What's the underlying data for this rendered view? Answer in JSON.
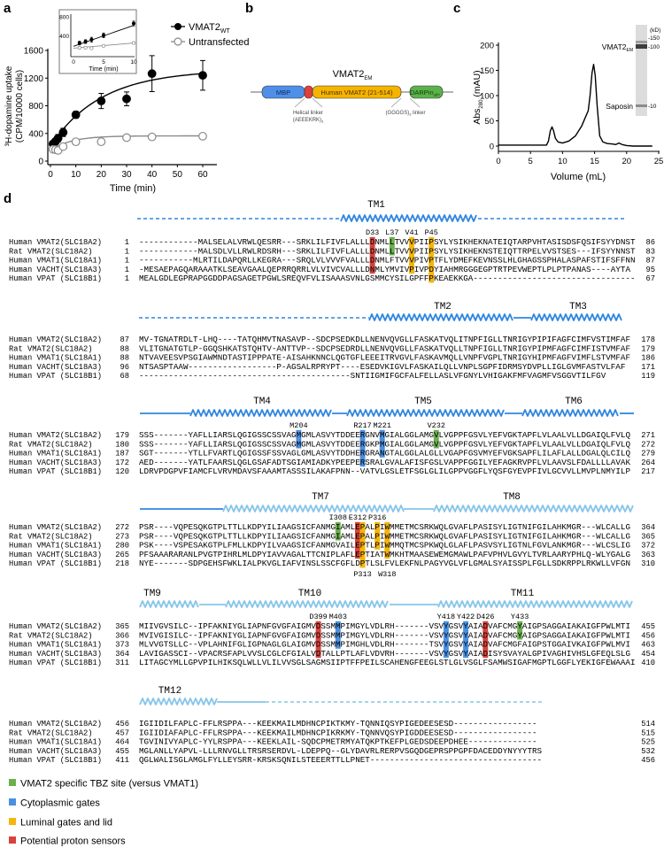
{
  "panel_labels": {
    "a": "a",
    "b": "b",
    "c": "c",
    "d": "d"
  },
  "chart_data": [
    {
      "panel": "a",
      "type": "scatter",
      "title": "",
      "xlabel": "Time (min)",
      "ylabel_line1": "³H-dopamine uptake",
      "ylabel_line2": "(CPM/10000 cells)",
      "xlim": [
        0,
        60
      ],
      "ylim": [
        0,
        1600
      ],
      "xticks": [
        "0",
        "10",
        "20",
        "30",
        "40",
        "50",
        "60"
      ],
      "yticks": [
        "0",
        "400",
        "800",
        "1200",
        "1600"
      ],
      "legend_position": "top-right",
      "series": [
        {
          "name": "VMAT2",
          "name_sub": "WT",
          "marker": "filled-circle",
          "color": "#000000",
          "x": [
            1,
            2,
            3,
            5,
            10,
            20,
            30,
            40,
            60
          ],
          "y": [
            250,
            285,
            330,
            415,
            670,
            870,
            900,
            1265,
            1240
          ],
          "err": [
            35,
            45,
            55,
            60,
            50,
            110,
            100,
            260,
            215
          ],
          "fit": {
            "plateau_start": 220,
            "span": 1100,
            "tau": 20
          }
        },
        {
          "name": "Untransfected",
          "name_sub": "",
          "marker": "open-circle",
          "color": "#8a8a8a",
          "x": [
            1,
            2,
            3,
            5,
            10,
            20,
            30,
            40,
            60
          ],
          "y": [
            170,
            165,
            155,
            210,
            280,
            280,
            340,
            350,
            360
          ],
          "err": [
            15,
            15,
            15,
            20,
            20,
            25,
            20,
            30,
            20
          ],
          "fit": {
            "plateau_start": 150,
            "span": 215,
            "tau": 8
          }
        }
      ]
    },
    {
      "panel": "a-inset",
      "type": "scatter",
      "xlabel": "Time (min)",
      "xlim": [
        0,
        10
      ],
      "ylim": [
        0,
        800
      ],
      "xticks": [
        "0",
        "5",
        "10"
      ],
      "yticks": [
        "400",
        "800"
      ],
      "series": [
        {
          "name": "VMAT2",
          "x": [
            1,
            2,
            3,
            5,
            10
          ],
          "y": [
            250,
            280,
            320,
            410,
            660
          ],
          "err": [
            40,
            40,
            50,
            50,
            50
          ],
          "fit_line": [
            180,
            620
          ]
        },
        {
          "name": "Untransfected",
          "x": [
            1,
            2,
            3,
            5,
            10
          ],
          "y": [
            150,
            150,
            140,
            190,
            250
          ],
          "err": [
            10,
            10,
            10,
            10,
            10
          ],
          "fit_line": [
            140,
            250
          ]
        }
      ]
    },
    {
      "panel": "c",
      "type": "line",
      "xlabel": "Volume (mL)",
      "ylabel": "Abs",
      "ylabel_sub": "280",
      "ylabel_unit": " (mAU)",
      "xlim": [
        0,
        25
      ],
      "ylim": [
        -10,
        200
      ],
      "xticks": [
        "0",
        "5",
        "10",
        "15",
        "20",
        "25"
      ],
      "yticks": [
        "0",
        "50",
        "100",
        "150",
        "200"
      ],
      "x": [
        0,
        5,
        7.5,
        7.8,
        8.1,
        8.35,
        8.6,
        8.9,
        9.3,
        10,
        11,
        12,
        13,
        13.5,
        14,
        14.3,
        14.6,
        14.85,
        15.1,
        15.4,
        15.8,
        16.3,
        17,
        17.8,
        18.3,
        18.8,
        19.3,
        20,
        21,
        24
      ],
      "y": [
        2,
        2,
        2,
        10,
        30,
        38,
        30,
        15,
        8,
        6,
        10,
        20,
        40,
        55,
        70,
        100,
        145,
        162,
        140,
        80,
        20,
        8,
        5,
        4,
        3,
        6,
        3,
        1,
        0,
        0
      ],
      "gel": {
        "unit": "(kD)",
        "markers": [
          "-150",
          "-100",
          "-10"
        ],
        "band_labels": [
          {
            "text": "VMAT2",
            "sub": "EM"
          },
          {
            "text": "Saposin",
            "sub": ""
          }
        ]
      }
    }
  ],
  "construct": {
    "title": "VMAT2",
    "title_sub": "EM",
    "domains": [
      {
        "label": "MBP",
        "color": "#4f8fe8"
      },
      {
        "label": "",
        "color": "#e0403c"
      },
      {
        "label": "Human VMAT2 (21-514)",
        "color": "#f5b400"
      },
      {
        "label": "DARPin",
        "sub": "off7",
        "color": "#5cb24a"
      }
    ],
    "helical_linker": "Helical linker",
    "helical_linker_seq": "(AEEEKRK)",
    "helical_linker_sub": "3",
    "gs_linker": "(GGGGS)",
    "gs_linker_sub": "3",
    "gs_linker_suffix": " linker"
  },
  "alignment": {
    "names": [
      "Human VMAT2(SLC18A2)",
      "Rat   VMAT2(SLC18A2)",
      "Human VMAT1(SLC18A1)",
      "Human VACHT(SLC18A3)",
      "Human VPAT (SLC18B1)"
    ],
    "colors": {
      "tbz": "#6ab04c",
      "cyto": "#4a90e2",
      "lumen": "#f5b50a",
      "proton": "#d9413a"
    },
    "blocks": [
      {
        "tm_labels": [
          "TM1"
        ],
        "rows": [
          {
            "start": "1",
            "seq": "------------MALSELALVRWLQESRR---SRKLILFIVFLALLLDNMLLTVVVPIIPSYLYSIKHEKNATEIQTARPVHTASISDSFQSIFSYYDNST",
            "end": "86"
          },
          {
            "start": "1",
            "seq": "------------MALSDLVLLRWLRDSRH---SRKLILFIVFLALLLDNMLLTVVVPIIPSYLYSIKHEKNSTEIQTTRPELVVSTSES---IFSYYNNST",
            "end": "83"
          },
          {
            "start": "1",
            "seq": "-----------MLRTILDAPQRLLKEGRA---SRQLVLVVVFVALLLDNMLFTVVVPIVPTFLYDMEFKEVNSSLHLGHAGSSPHALASPAFSTIFSFFNN",
            "end": "87"
          },
          {
            "start": "1",
            "seq": "-MESAEPAGQARAAATKLSEAVGAALQEPRRQRRLVLVIVCVALLLDNMLYMVIVPIVPDYIAHMRGGGEGPTRTPEVWEPTLPLPTPANAS----AYTA",
            "end": "95"
          },
          {
            "start": "1",
            "seq": "MEALGDLEGPRAPGGDDPAGSAGETPGWLSREQVFVLISAAASVNLGSMMCYSILGPFFPKEAEKKGA---------------------------------",
            "end": "67"
          }
        ],
        "highlights": [
          {
            "label": "D33",
            "residue": 33,
            "type": "proton",
            "rows": [
              0,
              1,
              2,
              3
            ],
            "label_pos": "above"
          },
          {
            "label": "L37",
            "residue": 37,
            "type": "tbz",
            "rows": [
              0,
              1
            ],
            "label_pos": "above"
          },
          {
            "label": "V41",
            "residue": 41,
            "type": "lumen",
            "rows": [
              0,
              1,
              2,
              3
            ],
            "label_pos": "above"
          },
          {
            "label": "P45",
            "residue": 45,
            "type": "lumen",
            "rows": [
              0,
              1,
              2,
              3,
              4
            ],
            "label_pos": "above"
          }
        ]
      },
      {
        "tm_labels": [
          "TM2",
          "TM3"
        ],
        "rows": [
          {
            "start": "87",
            "seq": "MV-TGNATRDLT-LHQ----TATQHMVTNASAVP--SDCPSEDKDLLNENVQVGLLFASKATVQLITNPFIGLLTNRIGYPIPIFAGFCIMFVSTIMFAF",
            "end": "178"
          },
          {
            "start": "88",
            "seq": "VLITGNATGTLP-GGQSHKATSTQHTV-ANTTVP--SDCPSEDRDLLNENVQVGLLFASKATVQLLTNPFIGLLTNRIGYPIPMFAGFCIMFISTVMFAF",
            "end": "179"
          },
          {
            "start": "88",
            "seq": "NTVAVEESVPSGIAWMNDTASTIPPPATE-AISAHKNNCLQGTGFLEEEITRVGVLFASKAVMQLLVNPFVGPLTNRIGYHIPMFAGFVIMFLSTVMFAF",
            "end": "186"
          },
          {
            "start": "96",
            "seq": "NTSASPTAAW------------------P-AGSALRPRYPT----ESEDVKIGVLFASKAILQLLVNPLSGPFIDRMSYDVPLLIGLGVMFASTVLFAF",
            "end": "171"
          },
          {
            "start": "68",
            "seq": "-------------------------------------------SNTIIGMIFGCFALFELLASLVFGNYLVHIGAKFMFVAGMFVSGGVTILFGV",
            "end": "119"
          }
        ],
        "highlights": []
      },
      {
        "tm_labels": [
          "TM4",
          "TM5",
          "TM6"
        ],
        "rows": [
          {
            "start": "179",
            "seq": "SSS-------YAFLLIARSLQGIGSSCSSVAGMGMLASVYTDDEERGNVMGIALGGLAMGVLVGPPFGSVLYEFVGKTAPFLVLAALVLLDGAIQLFVLQ",
            "end": "271"
          },
          {
            "start": "180",
            "seq": "SSS-------YAFLLIARSLQGIGSSCSSVAGMGMLASVYTDDEERGKPMGIALGGLAMGVLVGPPFGSVLYEFVGKTAPFLVLAALVLLDGAIQLFVLQ",
            "end": "272"
          },
          {
            "start": "187",
            "seq": "SGT-------YTLLFVARTLQGIGSSFSSVAGLGMLASVYTDDHERGRANGTALGGLALGLLVGAPFGSVMYEFVGKSAPFLILAFLALLDGALQLCILQ",
            "end": "279"
          },
          {
            "start": "172",
            "seq": "AED-------YATLFAARSLQGLGSAFADTSGIAMIADKYPEEPERSRALGVALAFISFGSLVAPPFGGILYEFAGKRVPFLVLAAVSLFDALLLLAVAK",
            "end": "264"
          },
          {
            "start": "120",
            "seq": "LDRVPDGPVFIAMCFLVRVMDAVSFAAAMTASSSILAKAFPNN--VATVLGSLETFSGLGLILGPPVGGFLYQSFGYEVPFIVLGCVVLLMVPLNMYILP",
            "end": "217"
          }
        ],
        "highlights": [
          {
            "label": "M204",
            "residue": 204,
            "type": "cyto",
            "rows": [
              0,
              1
            ],
            "label_pos": "above"
          },
          {
            "label": "R217",
            "residue": 217,
            "type": "cyto",
            "rows": [
              0,
              1,
              2,
              3
            ],
            "label_pos": "above"
          },
          {
            "label": "M221",
            "residue": 221,
            "type": "cyto",
            "rows": [
              0,
              1,
              2
            ],
            "label_pos": "above"
          },
          {
            "label": "V232",
            "residue": 232,
            "type": "tbz",
            "rows": [
              0,
              1
            ],
            "label_pos": "above"
          }
        ]
      },
      {
        "tm_labels": [
          "TM7",
          "TM8"
        ],
        "rows": [
          {
            "start": "272",
            "seq": "PSR----VQPESQKGTPLTTLLKDPYILIAAGSICFANMGIAMLEPALPIWMMETMCSRKWQLGVAFLPASISYLIGTNIFGILAHKMGR---WLCALLG",
            "end": "364"
          },
          {
            "start": "273",
            "seq": "PSR----VQPESQKGTPLTTLLKDPYILIAAGSICFANMGIAMLEPALPIWMMETMCSRKWQLGVAFLPASISYLIGTNIFGILAHKMGR---WLCALLG",
            "end": "365"
          },
          {
            "start": "280",
            "seq": "PSK----VSPESAKGTPLFMLLKDPYILVAAGSICFANMGVAILEPTLPIWMMQTMCSPKWQLGLAFLPASVSYLIGTNLFGVLANKMGR---WLCSLIG",
            "end": "372"
          },
          {
            "start": "265",
            "seq": "PFSAAARARANLPVGTPIHRLMLDPYIAVVAGALTTCNIPLAFLEPTIATWMKHTMAASEWEMGMAWLPAFVPHVLGVYLTVRLAARYPHLQ-WLYGALG",
            "end": "363"
          },
          {
            "start": "218",
            "seq": "NYE-------SDPGEHSFWKLIALPKVGLIAFVINSLSSCFGFLDPTLSLFVLEKFNLPAGYVGLVFLGMALSYAISSPLFGLLSDKRPPLRKWLLVFGN",
            "end": "310"
          }
        ],
        "highlights": [
          {
            "label": "I308",
            "residue": 308,
            "type": "tbz",
            "rows": [
              0,
              1
            ],
            "label_pos": "above"
          },
          {
            "label": "E312",
            "residue": 312,
            "type": "proton",
            "rows": [
              0,
              1,
              2,
              3
            ],
            "label_pos": "above"
          },
          {
            "label": "P313",
            "residue": 313,
            "type": "lumen",
            "rows": [
              0,
              1,
              2,
              3,
              4
            ],
            "label_pos": "below"
          },
          {
            "label": "P316",
            "residue": 316,
            "type": "lumen",
            "rows": [
              0,
              1,
              2
            ],
            "label_pos": "above"
          },
          {
            "label": "W318",
            "residue": 318,
            "type": "lumen",
            "rows": [
              0,
              1,
              2,
              3
            ],
            "label_pos": "below"
          }
        ]
      },
      {
        "tm_labels": [
          "TM9",
          "TM10",
          "TM11"
        ],
        "rows": [
          {
            "start": "365",
            "seq": "MIIVGVSILC--IPFAKNIYGLIAPNFGVGFAIGMVDSSMMPIMGYLVDLRH-------VSVYGSVYAIADVAFCMGYAIGPSAGGAIAKAIGFPWLMTI",
            "end": "455"
          },
          {
            "start": "366",
            "seq": "MVIVGISILC--IPFAKNIYGLIAPNFGVGFAIGMVDSSMMPIMGYLVDLRH-------VSVYGSVYAIADVAFCMGYAIGPSAGGAIAKAIGFPWLMTI",
            "end": "456"
          },
          {
            "start": "373",
            "seq": "MLVVGTSLLC--VPLAHNIFGLIGPNAGLGLAIGMVDSSMMPIMGHLVDLRH-------TSVYGSVYAIADVAFCMGFAIGPSTGGAIVKAIGFPWLMVI",
            "end": "463"
          },
          {
            "start": "364",
            "seq": "LAVIGASSCI--VPACRSFAPLVVSLCGLCFGIALVDTALLPTLAFLVDVRH-------VSVYGSVYAIADISYSVAYALGPIVAGHIVHSLGFEQLSLG",
            "end": "454"
          },
          {
            "start": "311",
            "seq": "LITAGCYMLLGPVPILHIKSQLWLLVLILVVSGLSAGMSIIPTFFPEILSCAHENGFEEGLSTLGLVSGLFSAMWSIGAFMGPTLGGFLYEKIGFEWAAAI",
            "end": "410"
          }
        ],
        "highlights": [
          {
            "label": "D399",
            "residue": 399,
            "type": "proton",
            "rows": [
              0,
              1,
              2,
              3
            ],
            "label_pos": "above"
          },
          {
            "label": "M403",
            "residue": 403,
            "type": "cyto",
            "rows": [
              0,
              1,
              2
            ],
            "label_pos": "above"
          },
          {
            "label": "Y418",
            "residue": 418,
            "type": "cyto",
            "rows": [
              0,
              1,
              2,
              3
            ],
            "label_pos": "above"
          },
          {
            "label": "Y422",
            "residue": 422,
            "type": "cyto",
            "rows": [
              0,
              1,
              2,
              3
            ],
            "label_pos": "above"
          },
          {
            "label": "D426",
            "residue": 426,
            "type": "proton",
            "rows": [
              0,
              1,
              2,
              3
            ],
            "label_pos": "above"
          },
          {
            "label": "Y433",
            "residue": 433,
            "type": "tbz",
            "rows": [
              0,
              1
            ],
            "label_pos": "above"
          }
        ]
      },
      {
        "tm_labels": [
          "TM12"
        ],
        "rows": [
          {
            "start": "456",
            "seq": "IGIIDILFAPLC-FFLRSPPA---KEEKMAILMDHNCPIKTKMY-TQNNIQSYPIGEDEESESD-----------------",
            "end": "514"
          },
          {
            "start": "457",
            "seq": "IGIIDIAFAPLC-FFLRSPPA---KEEKMAILMDHNCPIKRKMY-TQNNVQSYPIGDDEESESD-----------------",
            "end": "515"
          },
          {
            "start": "464",
            "seq": "TGVINIVYAPLC-YYLRSPPA---KEEKLAIL-SQDCPMETRMYATQKPTKEFPLGEDSDEEPDHEE--------------",
            "end": "525"
          },
          {
            "start": "455",
            "seq": "MGLANLLYAPVL-LLLRNVGLLTRSRSERDVL-LDEPPQ--GLYDAVRLRERPVSGQDGEPRSPPGPFDACEDDYNYYYTRS",
            "end": "532"
          },
          {
            "start": "411",
            "seq": "QGLWALISGLAMGLFYLLEYSRR-KRSKSQNILSTEEERTTLLPNET-----------------------------------",
            "end": "456"
          }
        ],
        "highlights": []
      }
    ],
    "legend": [
      {
        "type": "tbz",
        "label": "VMAT2 specific TBZ site (versus VMAT1)"
      },
      {
        "type": "cyto",
        "label": "Cytoplasmic gates"
      },
      {
        "type": "lumen",
        "label": "Luminal gates and lid"
      },
      {
        "type": "proton",
        "label": "Potential proton sensors"
      }
    ]
  }
}
